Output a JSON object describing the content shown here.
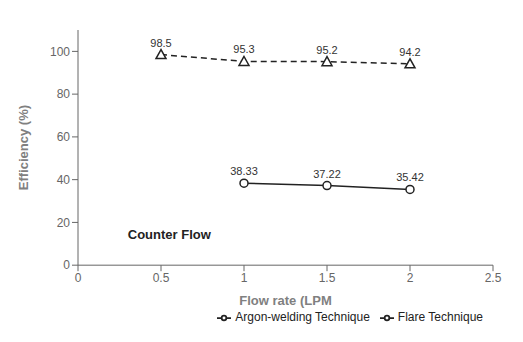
{
  "chart_data": {
    "type": "line",
    "xlabel": "Flow rate (LPM",
    "ylabel": "Efficiency (%)",
    "annotations": [
      "Counter Flow"
    ],
    "series": [
      {
        "name": "Flare Technique",
        "color": "#222222",
        "marker": "circle",
        "line_style": "solid",
        "x": [
          1,
          1.5,
          2
        ],
        "values": [
          38.33,
          37.22,
          35.42
        ]
      },
      {
        "name": "Argon-welding Technique",
        "color": "#222222",
        "marker": "triangle",
        "line_style": "dashed",
        "x": [
          0.5,
          1,
          1.5,
          2
        ],
        "values": [
          98.5,
          95.3,
          95.2,
          94.2
        ]
      }
    ],
    "xlim": [
      0,
      2.5
    ],
    "xticks": [
      0,
      0.5,
      1,
      1.5,
      2,
      2.5
    ],
    "ylim": [
      0,
      110
    ],
    "yticks": [
      0,
      20,
      40,
      60,
      80,
      100
    ],
    "data_labels": true,
    "legend": "lower right",
    "grid": false
  }
}
